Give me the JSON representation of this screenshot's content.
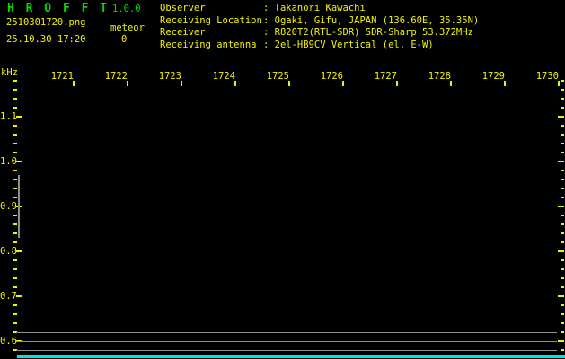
{
  "colors": {
    "background": "#000000",
    "title_green": "#00dc00",
    "text_yellow": "#f2f200",
    "grid_gray": "#8f8f8f",
    "level_trace_cyan": "#00e6e6"
  },
  "header": {
    "app_title": "H R O F F T",
    "app_version": "1.0.0",
    "filename": "2510301720.png",
    "mode": "meteor",
    "timestamp": "25.10.30 17:20",
    "echo_count": "0",
    "info_rows": [
      {
        "label": "Observer",
        "value": ": Takanori Kawachi"
      },
      {
        "label": "Receiving Location",
        "value": ": Ogaki, Gifu, JAPAN (136.60E, 35.35N)"
      },
      {
        "label": "Receiver",
        "value": ": R820T2(RTL-SDR) SDR-Sharp 53.372MHz"
      },
      {
        "label": "Receiving antenna",
        "value": ": 2el-HB9CV Vertical (el. E-W)"
      }
    ]
  },
  "chart_data": {
    "type": "heatmap",
    "title": "",
    "xlabel": "",
    "ylabel": "kHz",
    "x_tick_labels": [
      "1721",
      "1722",
      "1723",
      "1724",
      "1725",
      "1726",
      "1727",
      "1728",
      "1729",
      "1730"
    ],
    "y_tick_labels": [
      "1.1",
      "1.0",
      "0.9",
      "0.8",
      "0.7",
      "0.6"
    ],
    "ylim": [
      0.58,
      1.18
    ],
    "grid": "off",
    "legend": "none",
    "echo_count": 0,
    "spectrogram_points": [],
    "overlays": {
      "echo_search_band_khz": [
        0.83,
        0.97
      ],
      "level_grid_lines_khz": [
        0.62,
        0.6,
        0.58
      ],
      "level_trace": {
        "shape": "flat",
        "color": "cyan",
        "position": "bottom edge"
      }
    }
  }
}
